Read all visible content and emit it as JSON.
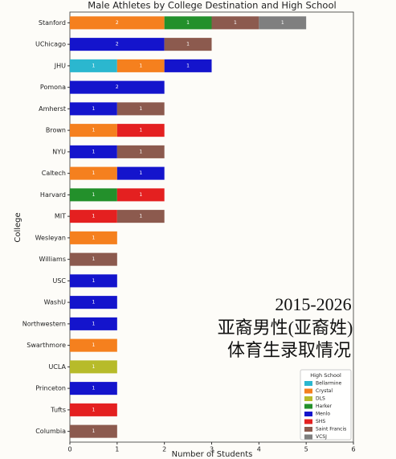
{
  "chart_data": {
    "type": "stacked-barh",
    "title": "Male Athletes by College Destination and High School",
    "xlabel": "Number of Students",
    "ylabel": "College",
    "categories": [
      "Stanford",
      "UChicago",
      "JHU",
      "Pomona",
      "Amherst",
      "Brown",
      "NYU",
      "Caltech",
      "Harvard",
      "MIT",
      "Wesleyan",
      "Williams",
      "USC",
      "WashU",
      "Northwestern",
      "Swarthmore",
      "UCLA",
      "Princeton",
      "Tufts",
      "Columbia"
    ],
    "series": [
      {
        "name": "Bellarmine",
        "color": "#2bb7cf",
        "values": [
          0,
          0,
          1,
          0,
          0,
          0,
          0,
          0,
          0,
          0,
          0,
          0,
          0,
          0,
          0,
          0,
          0,
          0,
          0,
          0
        ]
      },
      {
        "name": "Crystal",
        "color": "#f5801e",
        "values": [
          2,
          0,
          1,
          0,
          0,
          1,
          0,
          1,
          0,
          0,
          1,
          0,
          0,
          0,
          0,
          1,
          0,
          0,
          0,
          0
        ]
      },
      {
        "name": "DLS",
        "color": "#b7bb2a",
        "values": [
          0,
          0,
          0,
          0,
          0,
          0,
          0,
          0,
          0,
          0,
          0,
          0,
          0,
          0,
          0,
          0,
          1,
          0,
          0,
          0
        ]
      },
      {
        "name": "Harker",
        "color": "#23902b",
        "values": [
          1,
          0,
          0,
          0,
          0,
          0,
          0,
          0,
          1,
          0,
          0,
          0,
          0,
          0,
          0,
          0,
          0,
          0,
          0,
          0
        ]
      },
      {
        "name": "Menlo",
        "color": "#1414cc",
        "values": [
          0,
          2,
          1,
          2,
          1,
          0,
          1,
          1,
          0,
          0,
          0,
          0,
          1,
          1,
          1,
          0,
          0,
          1,
          0,
          0
        ]
      },
      {
        "name": "SHS",
        "color": "#e42020",
        "values": [
          0,
          0,
          0,
          0,
          0,
          1,
          0,
          0,
          1,
          1,
          0,
          0,
          0,
          0,
          0,
          0,
          0,
          0,
          1,
          0
        ]
      },
      {
        "name": "Saint Francis",
        "color": "#8c5a4e",
        "values": [
          1,
          1,
          0,
          0,
          1,
          0,
          1,
          0,
          0,
          1,
          0,
          1,
          0,
          0,
          0,
          0,
          0,
          0,
          0,
          1
        ]
      },
      {
        "name": "VCSJ",
        "color": "#7f7f7f",
        "values": [
          1,
          0,
          0,
          0,
          0,
          0,
          0,
          0,
          0,
          0,
          0,
          0,
          0,
          0,
          0,
          0,
          0,
          0,
          0,
          0
        ]
      }
    ],
    "xlim": [
      0,
      6
    ],
    "xticks": [
      0,
      1,
      2,
      3,
      4,
      5,
      6
    ],
    "legend_title": "High School",
    "legend": "lower right",
    "annotations": [
      "2015-2026",
      "亚裔男性(亚裔姓)",
      "体育生录取情况"
    ]
  }
}
